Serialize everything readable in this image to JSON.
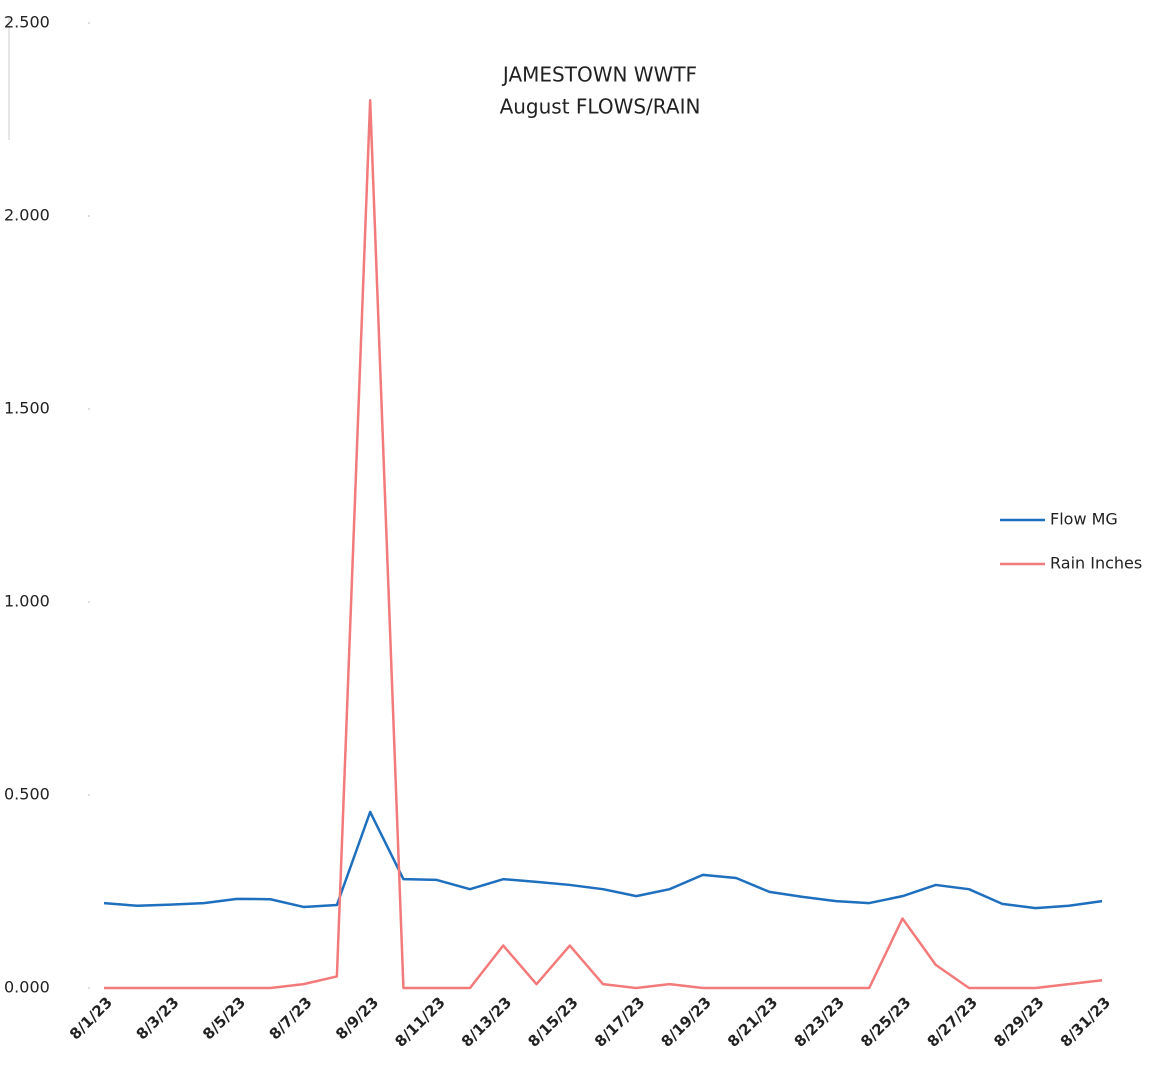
{
  "chart_data": {
    "type": "line",
    "title": "JAMESTOWN WWTF",
    "subtitle": "August  FLOWS/RAIN",
    "categories": [
      "8/1/23",
      null,
      "8/3/23",
      null,
      "8/5/23",
      null,
      "8/7/23",
      null,
      "8/9/23",
      null,
      "8/11/23",
      null,
      "8/13/23",
      null,
      "8/15/23",
      null,
      "8/17/23",
      null,
      "8/19/23",
      null,
      "8/21/23",
      null,
      "8/23/23",
      null,
      "8/25/23",
      null,
      "8/27/23",
      null,
      "8/29/23",
      null,
      "8/31/23"
    ],
    "series": [
      {
        "name": "Flow MG",
        "color": "#1f6fbf",
        "values": [
          0.22,
          0.213,
          0.216,
          0.22,
          0.231,
          0.23,
          0.21,
          0.215,
          0.456,
          0.282,
          0.28,
          0.256,
          0.282,
          0.275,
          0.267,
          0.256,
          0.238,
          0.256,
          0.293,
          0.285,
          0.249,
          0.236,
          0.225,
          0.22,
          0.238,
          0.267,
          0.256,
          0.218,
          0.207,
          0.213,
          0.225
        ]
      },
      {
        "name": "Rain Inches",
        "color": "#f27a7a",
        "values": [
          0,
          0,
          0,
          0,
          0,
          0,
          0.01,
          0.03,
          2.3,
          0,
          0,
          0,
          0.11,
          0.01,
          0.11,
          0.01,
          0,
          0.01,
          0,
          0,
          0,
          0,
          0,
          0,
          0.18,
          0.06,
          0,
          0,
          0,
          0.01,
          0.02
        ]
      }
    ],
    "ylim": [
      0,
      2.5
    ],
    "yticks": [
      {
        "value": 0,
        "label": "0.000"
      },
      {
        "value": 0.5,
        "label": "0.500"
      },
      {
        "value": 1,
        "label": "1.000"
      },
      {
        "value": 1.5,
        "label": "1.500"
      },
      {
        "value": 2,
        "label": "2.000"
      },
      {
        "value": 2.5,
        "label": "2.500"
      }
    ],
    "legend": "right"
  }
}
